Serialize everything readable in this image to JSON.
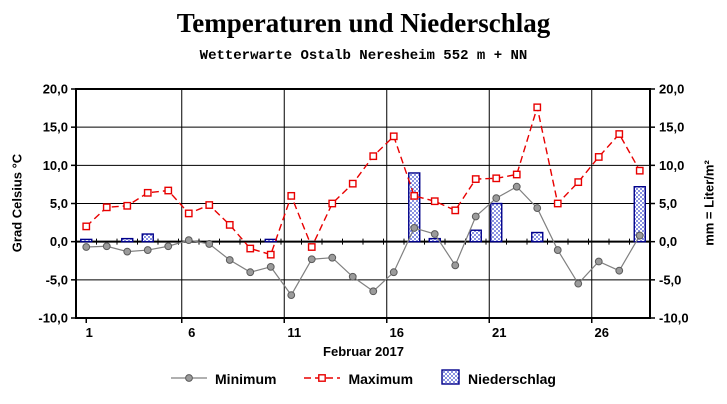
{
  "title": "Temperaturen und Niederschlag",
  "subtitle": "Wetterwarte Ostalb Neresheim 552 m + NN",
  "chart_data": {
    "type": "line+bar",
    "x": [
      1,
      2,
      3,
      4,
      5,
      6,
      7,
      8,
      9,
      10,
      11,
      12,
      13,
      14,
      15,
      16,
      17,
      18,
      19,
      20,
      21,
      22,
      23,
      24,
      25,
      26,
      27,
      28
    ],
    "xlabel": "Februar 2017",
    "ylabel_left": "Grad Celsius °C",
    "ylabel_right": "mm = Liter/m²",
    "ylim": [
      -10,
      20
    ],
    "ytick_values": [
      20,
      15,
      10,
      5,
      0,
      -5,
      -10
    ],
    "ytick_labels": [
      "20,0",
      "15,0",
      "10,0",
      "5,0",
      "0,0",
      "-5,0",
      "-10,0"
    ],
    "xtick_days": [
      1,
      6,
      11,
      16,
      21,
      26
    ],
    "grid": true,
    "legend_position": "bottom",
    "series": [
      {
        "name": "Minimum",
        "type": "line",
        "style": "solid",
        "marker": "filled-circle",
        "color": "#808080",
        "marker_fill": "#9b9b9b",
        "marker_edge": "#5a5a5a",
        "values": [
          -0.7,
          -0.6,
          -1.3,
          -1.1,
          -0.6,
          0.2,
          -0.3,
          -2.4,
          -4.0,
          -3.3,
          -7.0,
          -2.3,
          -2.1,
          -4.6,
          -6.5,
          -4.0,
          1.8,
          1.0,
          -3.1,
          3.3,
          5.7,
          7.2,
          4.4,
          -1.1,
          -5.5,
          -2.6,
          -3.8,
          0.8
        ]
      },
      {
        "name": "Maximum",
        "type": "line",
        "style": "dashed",
        "marker": "open-square",
        "color": "#e80000",
        "marker_fill": "#ffffff",
        "values": [
          2.0,
          4.5,
          4.7,
          6.4,
          6.7,
          3.7,
          4.8,
          2.2,
          -0.9,
          -1.7,
          6.0,
          -0.7,
          5.0,
          7.6,
          11.2,
          13.8,
          6.0,
          5.3,
          4.1,
          8.2,
          8.3,
          8.8,
          17.6,
          5.0,
          7.8,
          11.1,
          14.1,
          9.3
        ]
      },
      {
        "name": "Niederschlag",
        "type": "bar",
        "style": "dotted-pattern",
        "fill_dot_color": "#3344cc",
        "border_color": "#00008b",
        "values": [
          0.3,
          0,
          0.4,
          1.0,
          0,
          0,
          0,
          0,
          0,
          0.3,
          0,
          0,
          0,
          0,
          0,
          0,
          9.0,
          0.4,
          0,
          1.5,
          5.0,
          0,
          1.2,
          0,
          0,
          0,
          0,
          7.2
        ]
      }
    ]
  },
  "colors": {
    "grid": "#000000",
    "axis": "#000000",
    "background": "#ffffff",
    "text": "#000000"
  }
}
